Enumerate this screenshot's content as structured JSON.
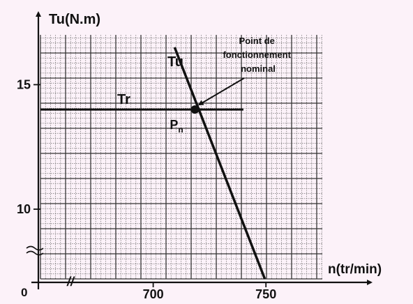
{
  "chart_data": {
    "type": "line",
    "ylabel": "Tu(N.m)",
    "xlabel": "n(tr/min)",
    "origin_label": "0",
    "x_ticks": [
      {
        "value": 700,
        "label": "700"
      },
      {
        "value": 750,
        "label": "750"
      }
    ],
    "y_ticks": [
      {
        "value": 10,
        "label": "10"
      },
      {
        "value": 15,
        "label": "15"
      }
    ],
    "xlim": [
      650,
      775
    ],
    "ylim": [
      7.2,
      17
    ],
    "axis_break_symbol": "//",
    "grid": true,
    "series": [
      {
        "name": "Tu",
        "points": [
          [
            709.5,
            16.5
          ],
          [
            749.5,
            7.2
          ]
        ]
      },
      {
        "name": "Tr",
        "points": [
          [
            650,
            14
          ],
          [
            740,
            14
          ]
        ]
      }
    ],
    "operating_point": {
      "label": "Pn",
      "x": 718.5,
      "y": 14
    },
    "annotation": "Point de fonctionnement nominal",
    "colors": {
      "background": "#fcf2f9",
      "grid": "#555555",
      "line": "#111111"
    }
  }
}
